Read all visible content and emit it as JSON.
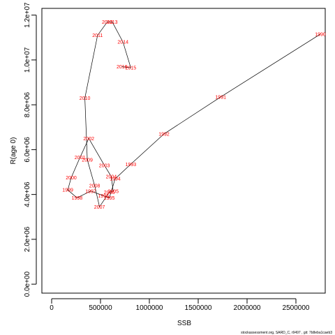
{
  "chart_data": {
    "type": "line",
    "title": "",
    "xlabel": "SSB",
    "ylabel": "R(age 0)",
    "xlim": [
      -100000,
      2800000
    ],
    "ylim": [
      -400000,
      12300000
    ],
    "x_ticks": [
      0,
      500000,
      1000000,
      1500000,
      2000000,
      2500000
    ],
    "x_tick_labels": [
      "0",
      "500000",
      "1000000",
      "1500000",
      "2000000",
      "2500000"
    ],
    "y_ticks": [
      0,
      2000000,
      4000000,
      6000000,
      8000000,
      10000000,
      12000000
    ],
    "y_tick_labels": [
      "0.0e+00",
      "2.0e+06",
      "4.0e+06",
      "6.0e+06",
      "8.0e+06",
      "1.0e+07",
      "1.2e+07"
    ],
    "grid": false,
    "legend": "none",
    "line_color": "#000000",
    "label_color": "#ff0000",
    "points": [
      {
        "year": "1990",
        "x": 2750000,
        "y": 11150000
      },
      {
        "year": "1991",
        "x": 1730000,
        "y": 8350000
      },
      {
        "year": "1992",
        "x": 1150000,
        "y": 6700000
      },
      {
        "year": "1993",
        "x": 810000,
        "y": 5350000
      },
      {
        "year": "1994",
        "x": 650000,
        "y": 4700000
      },
      {
        "year": "1995",
        "x": 590000,
        "y": 3850000
      },
      {
        "year": "1996",
        "x": 530000,
        "y": 3950000
      },
      {
        "year": "1997",
        "x": 400000,
        "y": 4150000
      },
      {
        "year": "1998",
        "x": 260000,
        "y": 3850000
      },
      {
        "year": "1999",
        "x": 165000,
        "y": 4200000
      },
      {
        "year": "2000",
        "x": 200000,
        "y": 4750000
      },
      {
        "year": "2001",
        "x": 290000,
        "y": 5650000
      },
      {
        "year": "2002",
        "x": 380000,
        "y": 6500000
      },
      {
        "year": "2003",
        "x": 540000,
        "y": 5300000
      },
      {
        "year": "2004",
        "x": 610000,
        "y": 4800000
      },
      {
        "year": "2005",
        "x": 630000,
        "y": 4150000
      },
      {
        "year": "2006",
        "x": 590000,
        "y": 4100000
      },
      {
        "year": "2007",
        "x": 490000,
        "y": 3450000
      },
      {
        "year": "2008",
        "x": 440000,
        "y": 4400000
      },
      {
        "year": "2009",
        "x": 365000,
        "y": 5550000
      },
      {
        "year": "2010",
        "x": 340000,
        "y": 8300000
      },
      {
        "year": "2011",
        "x": 470000,
        "y": 11100000
      },
      {
        "year": "2012",
        "x": 570000,
        "y": 11700000
      },
      {
        "year": "2013",
        "x": 620000,
        "y": 11700000
      },
      {
        "year": "2014",
        "x": 730000,
        "y": 10800000
      },
      {
        "year": "2015",
        "x": 810000,
        "y": 9650000
      },
      {
        "year": "2016",
        "x": 720000,
        "y": 9700000
      }
    ]
  },
  "footnote": "stockassessment.org, SARD_C, r9497 , git: 7b8eba1caeb3"
}
